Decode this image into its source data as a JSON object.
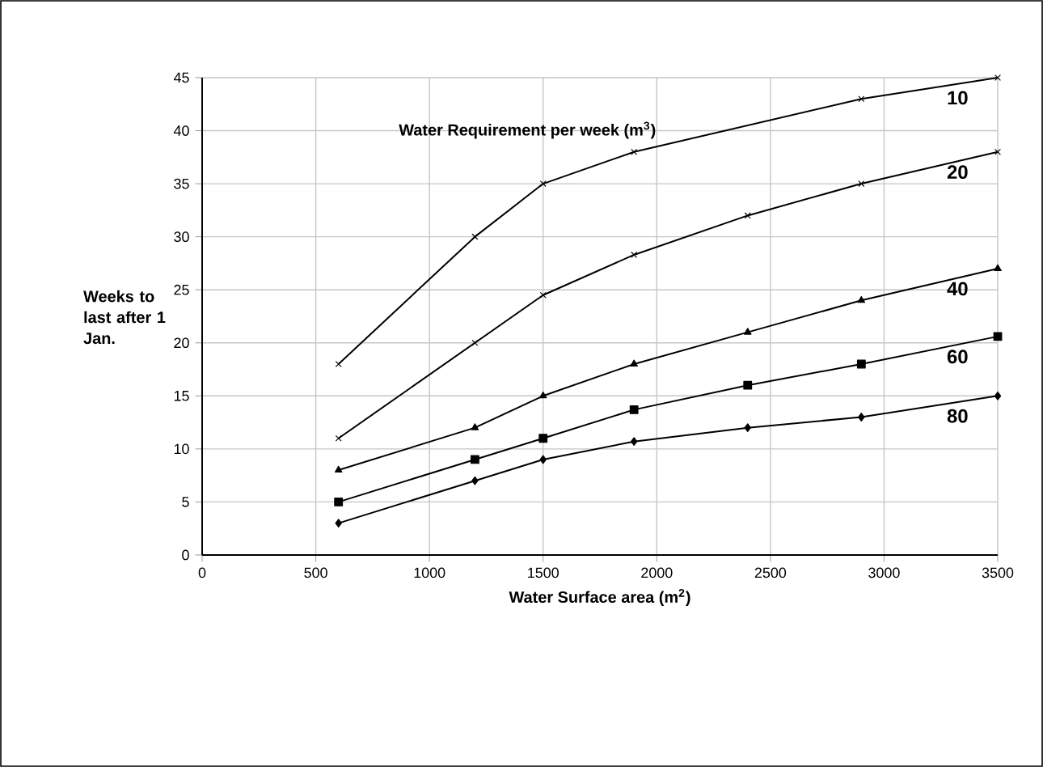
{
  "chart_data": {
    "type": "line",
    "xlabel": "Water Surface area  (m$^{2}$)",
    "ylabel": "Weeks to last after 1 Jan.",
    "annotations": [
      "Water Requirement per week  (m$^{3}$)"
    ],
    "xlim": [
      0,
      3500
    ],
    "xticks": [
      0,
      500,
      1000,
      1500,
      2000,
      2500,
      3000,
      3500
    ],
    "ylim": [
      0,
      45
    ],
    "yticks": [
      0,
      5,
      10,
      15,
      20,
      25,
      30,
      35,
      40,
      45
    ],
    "grid": true,
    "legend": false,
    "series": [
      {
        "name": "10",
        "color": "#000000",
        "marker": "cross",
        "x": [
          600,
          1200,
          1500,
          1900,
          2900,
          3500
        ],
        "values": [
          18,
          30,
          35,
          38,
          43,
          45
        ]
      },
      {
        "name": "20",
        "color": "#000000",
        "marker": "cross",
        "x": [
          600,
          1200,
          1500,
          1900,
          2400,
          2900,
          3500
        ],
        "values": [
          11,
          20,
          24.5,
          28.3,
          32,
          35,
          38
        ]
      },
      {
        "name": "40",
        "color": "#000000",
        "marker": "triangle",
        "x": [
          600,
          1200,
          1500,
          1900,
          2400,
          2900,
          3500
        ],
        "values": [
          8,
          12,
          15,
          18,
          21,
          24,
          27
        ]
      },
      {
        "name": "60",
        "color": "#000000",
        "marker": "square",
        "x": [
          600,
          1200,
          1500,
          1900,
          2400,
          2900,
          3500
        ],
        "values": [
          5,
          9,
          11,
          13.7,
          16,
          18,
          20.6
        ]
      },
      {
        "name": "80",
        "color": "#000000",
        "marker": "diamond",
        "x": [
          600,
          1200,
          1500,
          1900,
          2400,
          2900,
          3500
        ],
        "values": [
          3,
          7,
          9,
          10.7,
          12,
          13,
          15
        ]
      }
    ]
  }
}
